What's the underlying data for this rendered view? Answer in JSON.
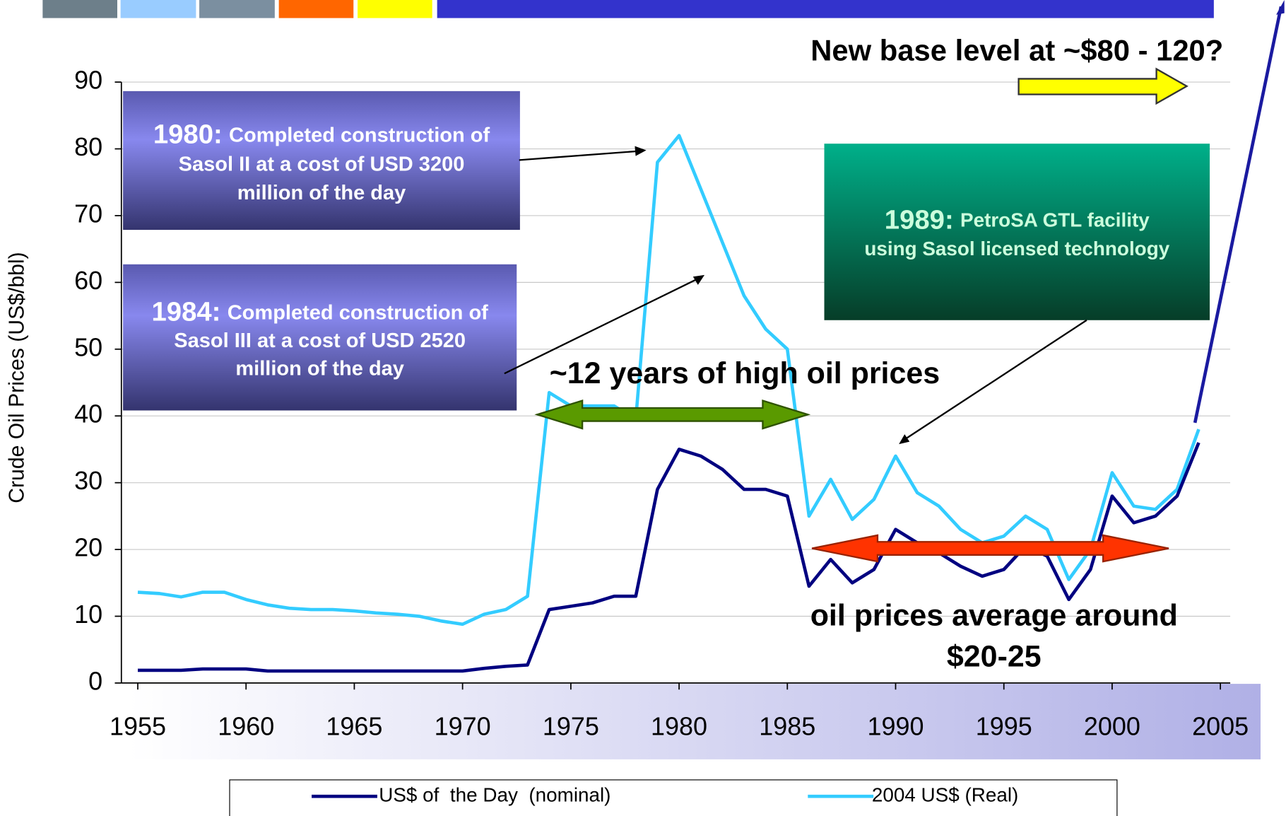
{
  "chart_data": {
    "type": "line",
    "y_label": "Crude Oil Prices (US$/bbl)",
    "x": [
      1955,
      1956,
      1957,
      1958,
      1959,
      1960,
      1961,
      1962,
      1963,
      1964,
      1965,
      1966,
      1967,
      1968,
      1969,
      1970,
      1971,
      1972,
      1973,
      1974,
      1975,
      1976,
      1977,
      1978,
      1979,
      1980,
      1981,
      1982,
      1983,
      1984,
      1985,
      1986,
      1987,
      1988,
      1989,
      1990,
      1991,
      1992,
      1993,
      1994,
      1995,
      1996,
      1997,
      1998,
      1999,
      2000,
      2001,
      2002,
      2003,
      2004
    ],
    "series": [
      {
        "name": "US$ of  the Day  (nominal)",
        "color": "#000080",
        "values": [
          1.9,
          1.9,
          1.9,
          2.1,
          2.1,
          2.1,
          1.8,
          1.8,
          1.8,
          1.8,
          1.8,
          1.8,
          1.8,
          1.8,
          1.8,
          1.8,
          2.2,
          2.5,
          2.7,
          11,
          11.5,
          12,
          13,
          13,
          29,
          35,
          34,
          32,
          29,
          29,
          28,
          14.5,
          18.5,
          15,
          17,
          23,
          21,
          19.5,
          17.5,
          16,
          17,
          20.5,
          19,
          12.5,
          17,
          28,
          24,
          25,
          28,
          36
        ]
      },
      {
        "name": "2004 US$ (Real)",
        "color": "#33ccff",
        "values": [
          13.6,
          13.4,
          12.9,
          13.6,
          13.6,
          12.5,
          11.7,
          11.2,
          11,
          11,
          10.8,
          10.5,
          10.3,
          10,
          9.3,
          8.8,
          10.3,
          11,
          13,
          43.5,
          41.5,
          41.5,
          41.5,
          39.5,
          78,
          82,
          74,
          66,
          58,
          53,
          50,
          25,
          30.5,
          24.5,
          27.5,
          34,
          28.5,
          26.5,
          23,
          21,
          22,
          25,
          23,
          15.5,
          20,
          31.5,
          26.5,
          26,
          29,
          38
        ]
      }
    ],
    "xlim": [
      1955,
      2005
    ],
    "xticks": [
      1955,
      1960,
      1965,
      1970,
      1975,
      1980,
      1985,
      1990,
      1995,
      2000,
      2005
    ],
    "ylim": [
      0,
      90
    ],
    "yticks": [
      0,
      10,
      20,
      30,
      40,
      50,
      60,
      70,
      80,
      90
    ],
    "grid": true,
    "boxes": [
      {
        "year": "1980:",
        "lines": [
          "Completed construction of",
          "Sasol II at a cost of USD 3200",
          "million of the day"
        ]
      },
      {
        "year": "1984:",
        "lines": [
          "Completed construction of",
          "Sasol III at a cost of USD 2520",
          "million of the day"
        ]
      },
      {
        "year": "1989:",
        "lines": [
          "PetroSA GTL facility",
          "using Sasol licensed technology"
        ]
      }
    ],
    "annotations": {
      "new_base": "New base level at ~$80 - 120?",
      "high_prices": "~12 years of high oil prices",
      "average": [
        "oil prices average around",
        "$20-25"
      ]
    }
  }
}
